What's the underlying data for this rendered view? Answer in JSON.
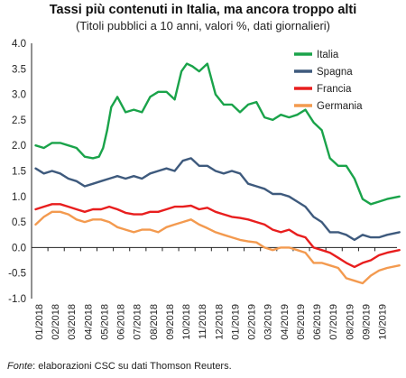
{
  "title": "Tassi più contenuti in Italia, ma ancora troppo alti",
  "subtitle": "(Titoli pubblici a 10 anni, valori %, dati giornalieri)",
  "source": {
    "label": "Fonte",
    "text": ": elaborazioni CSC su dati Thomson Reuters."
  },
  "chart_data": {
    "type": "line",
    "ylim": [
      -1.0,
      4.0
    ],
    "yticks": [
      "4.0",
      "3.5",
      "3.0",
      "2.5",
      "2.0",
      "1.5",
      "1.0",
      "0.5",
      "0.0",
      "-0.5",
      "-1.0"
    ],
    "ytick_values": [
      4.0,
      3.5,
      3.0,
      2.5,
      2.0,
      1.5,
      1.0,
      0.5,
      0.0,
      -0.5,
      -1.0
    ],
    "xticks": [
      "01/2018",
      "02/2018",
      "03/2018",
      "04/2018",
      "05/2018",
      "06/2018",
      "07/2018",
      "08/2018",
      "09/2018",
      "10/2018",
      "11/2018",
      "12/2018",
      "01/2019",
      "02/2019",
      "03/2019",
      "04/2019",
      "05/2019",
      "06/2019",
      "07/2019",
      "08/2019",
      "09/2019",
      "10/2019"
    ],
    "x_range": [
      "01/2018",
      "11/2019"
    ],
    "grid": false,
    "legend_position": "top-right",
    "series": [
      {
        "name": "Italia",
        "color": "#1aa34a",
        "x": [
          "01/2018",
          "01/2018",
          "02/2018",
          "02/2018",
          "03/2018",
          "03/2018",
          "04/2018",
          "04/2018",
          "05/2018",
          "05/2018",
          "05/2018",
          "05/2018",
          "06/2018",
          "06/2018",
          "07/2018",
          "07/2018",
          "08/2018",
          "08/2018",
          "09/2018",
          "09/2018",
          "10/2018",
          "10/2018",
          "10/2018",
          "11/2018",
          "11/2018",
          "12/2018",
          "12/2018",
          "01/2019",
          "01/2019",
          "02/2019",
          "02/2019",
          "03/2019",
          "03/2019",
          "04/2019",
          "04/2019",
          "05/2019",
          "05/2019",
          "06/2019",
          "06/2019",
          "07/2019",
          "07/2019",
          "08/2019",
          "08/2019",
          "09/2019",
          "09/2019",
          "10/2019",
          "10/2019",
          "11/2019"
        ],
        "values": [
          2.0,
          1.95,
          2.05,
          2.05,
          2.0,
          1.95,
          1.78,
          1.75,
          1.78,
          1.95,
          2.3,
          2.75,
          2.95,
          2.65,
          2.7,
          2.65,
          2.95,
          3.05,
          3.05,
          2.9,
          3.45,
          3.6,
          3.55,
          3.45,
          3.6,
          3.0,
          2.8,
          2.8,
          2.65,
          2.8,
          2.85,
          2.55,
          2.5,
          2.6,
          2.55,
          2.6,
          2.7,
          2.45,
          2.3,
          1.75,
          1.6,
          1.6,
          1.35,
          0.95,
          0.85,
          0.9,
          0.95,
          1.0
        ]
      },
      {
        "name": "Spagna",
        "color": "#3e5a7d",
        "x": [
          "01/2018",
          "01/2018",
          "02/2018",
          "02/2018",
          "03/2018",
          "03/2018",
          "04/2018",
          "04/2018",
          "05/2018",
          "05/2018",
          "06/2018",
          "06/2018",
          "07/2018",
          "07/2018",
          "08/2018",
          "08/2018",
          "09/2018",
          "09/2018",
          "10/2018",
          "10/2018",
          "11/2018",
          "11/2018",
          "12/2018",
          "12/2018",
          "01/2019",
          "01/2019",
          "02/2019",
          "02/2019",
          "03/2019",
          "03/2019",
          "04/2019",
          "04/2019",
          "05/2019",
          "05/2019",
          "06/2019",
          "06/2019",
          "07/2019",
          "07/2019",
          "08/2019",
          "08/2019",
          "09/2019",
          "09/2019",
          "10/2019",
          "10/2019",
          "11/2019"
        ],
        "values": [
          1.55,
          1.45,
          1.5,
          1.45,
          1.35,
          1.3,
          1.2,
          1.25,
          1.3,
          1.35,
          1.4,
          1.35,
          1.4,
          1.35,
          1.45,
          1.5,
          1.55,
          1.5,
          1.7,
          1.75,
          1.6,
          1.6,
          1.5,
          1.45,
          1.5,
          1.45,
          1.25,
          1.2,
          1.15,
          1.05,
          1.05,
          1.0,
          0.9,
          0.8,
          0.6,
          0.5,
          0.3,
          0.3,
          0.25,
          0.15,
          0.25,
          0.2,
          0.2,
          0.25,
          0.3
        ]
      },
      {
        "name": "Francia",
        "color": "#e81e1e",
        "x": [
          "01/2018",
          "01/2018",
          "02/2018",
          "02/2018",
          "03/2018",
          "03/2018",
          "04/2018",
          "04/2018",
          "05/2018",
          "05/2018",
          "06/2018",
          "06/2018",
          "07/2018",
          "07/2018",
          "08/2018",
          "08/2018",
          "09/2018",
          "09/2018",
          "10/2018",
          "10/2018",
          "11/2018",
          "11/2018",
          "12/2018",
          "12/2018",
          "01/2019",
          "01/2019",
          "02/2019",
          "02/2019",
          "03/2019",
          "03/2019",
          "04/2019",
          "04/2019",
          "05/2019",
          "05/2019",
          "06/2019",
          "06/2019",
          "07/2019",
          "07/2019",
          "08/2019",
          "08/2019",
          "09/2019",
          "09/2019",
          "10/2019",
          "10/2019",
          "11/2019"
        ],
        "values": [
          0.75,
          0.8,
          0.85,
          0.85,
          0.8,
          0.75,
          0.7,
          0.75,
          0.75,
          0.8,
          0.75,
          0.68,
          0.65,
          0.65,
          0.7,
          0.7,
          0.75,
          0.8,
          0.8,
          0.82,
          0.75,
          0.78,
          0.7,
          0.65,
          0.6,
          0.58,
          0.55,
          0.5,
          0.45,
          0.35,
          0.3,
          0.35,
          0.25,
          0.2,
          0.0,
          -0.05,
          -0.1,
          -0.2,
          -0.3,
          -0.38,
          -0.3,
          -0.25,
          -0.15,
          -0.1,
          -0.05
        ]
      },
      {
        "name": "Germania",
        "color": "#f39a4f",
        "x": [
          "01/2018",
          "01/2018",
          "02/2018",
          "02/2018",
          "03/2018",
          "03/2018",
          "04/2018",
          "04/2018",
          "05/2018",
          "05/2018",
          "06/2018",
          "06/2018",
          "07/2018",
          "07/2018",
          "08/2018",
          "08/2018",
          "09/2018",
          "09/2018",
          "10/2018",
          "10/2018",
          "11/2018",
          "11/2018",
          "12/2018",
          "12/2018",
          "01/2019",
          "01/2019",
          "02/2019",
          "02/2019",
          "03/2019",
          "03/2019",
          "04/2019",
          "04/2019",
          "05/2019",
          "05/2019",
          "06/2019",
          "06/2019",
          "07/2019",
          "07/2019",
          "08/2019",
          "08/2019",
          "09/2019",
          "09/2019",
          "10/2019",
          "10/2019",
          "11/2019"
        ],
        "values": [
          0.45,
          0.6,
          0.7,
          0.7,
          0.65,
          0.55,
          0.5,
          0.55,
          0.55,
          0.5,
          0.4,
          0.35,
          0.3,
          0.35,
          0.35,
          0.3,
          0.4,
          0.45,
          0.5,
          0.55,
          0.45,
          0.38,
          0.3,
          0.25,
          0.2,
          0.15,
          0.12,
          0.1,
          0.0,
          -0.05,
          0.0,
          0.0,
          -0.05,
          -0.1,
          -0.3,
          -0.3,
          -0.35,
          -0.4,
          -0.6,
          -0.65,
          -0.7,
          -0.55,
          -0.45,
          -0.4,
          -0.35
        ]
      }
    ]
  }
}
